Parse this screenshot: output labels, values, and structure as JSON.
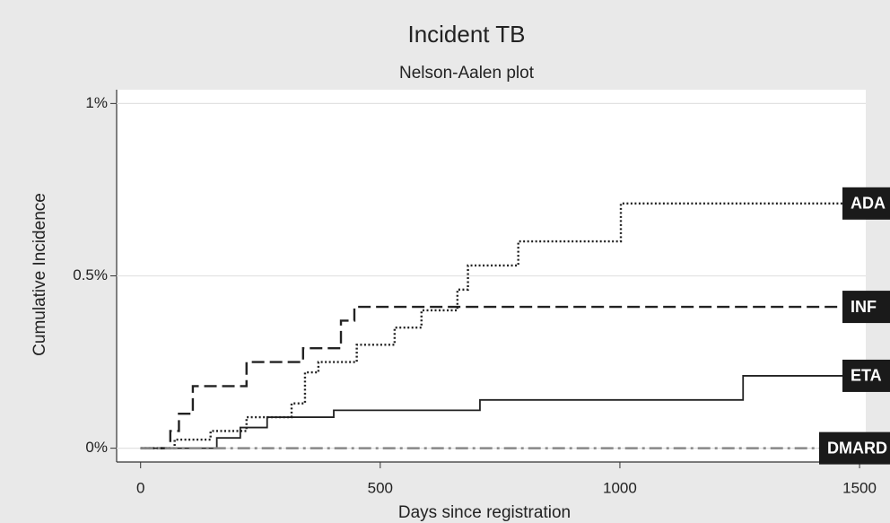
{
  "chart_data": {
    "type": "line",
    "step": true,
    "title": "Incident TB",
    "subtitle": "Nelson-Aalen plot",
    "x_label": "Days since registration",
    "y_label": "Cumulative Incidence",
    "xlim": [
      -50,
      1513
    ],
    "ylim": [
      -0.04,
      1.04
    ],
    "xticks": [
      0,
      500,
      1000,
      1500
    ],
    "yticks": [
      {
        "value": 0,
        "label": "0%"
      },
      {
        "value": 0.5,
        "label": "0.5%"
      },
      {
        "value": 1,
        "label": "1%"
      }
    ],
    "grid": true,
    "series": [
      {
        "name": "ADA",
        "color": "#222222",
        "dash": "dotted",
        "x": [
          0,
          71,
          146,
          221,
          315,
          343,
          371,
          451,
          530,
          586,
          661,
          683,
          788,
          1002,
          1500
        ],
        "values": [
          0,
          0.025,
          0.05,
          0.09,
          0.13,
          0.22,
          0.25,
          0.3,
          0.35,
          0.4,
          0.46,
          0.53,
          0.6,
          0.71,
          0.71
        ]
      },
      {
        "name": "INF",
        "color": "#222222",
        "dash": "dashed",
        "x": [
          0,
          62,
          80,
          109,
          221,
          339,
          418,
          446,
          1500
        ],
        "values": [
          0,
          0.05,
          0.1,
          0.18,
          0.25,
          0.29,
          0.37,
          0.41,
          0.41
        ]
      },
      {
        "name": "ETA",
        "color": "#222222",
        "dash": "solid",
        "x": [
          0,
          159,
          208,
          264,
          403,
          708,
          1257,
          1500
        ],
        "values": [
          0,
          0.03,
          0.06,
          0.09,
          0.11,
          0.14,
          0.21,
          0.21
        ]
      },
      {
        "name": "DMARD",
        "color": "#888888",
        "dash": "dashdot",
        "x": [
          0,
          1500
        ],
        "values": [
          0,
          0
        ]
      }
    ]
  }
}
